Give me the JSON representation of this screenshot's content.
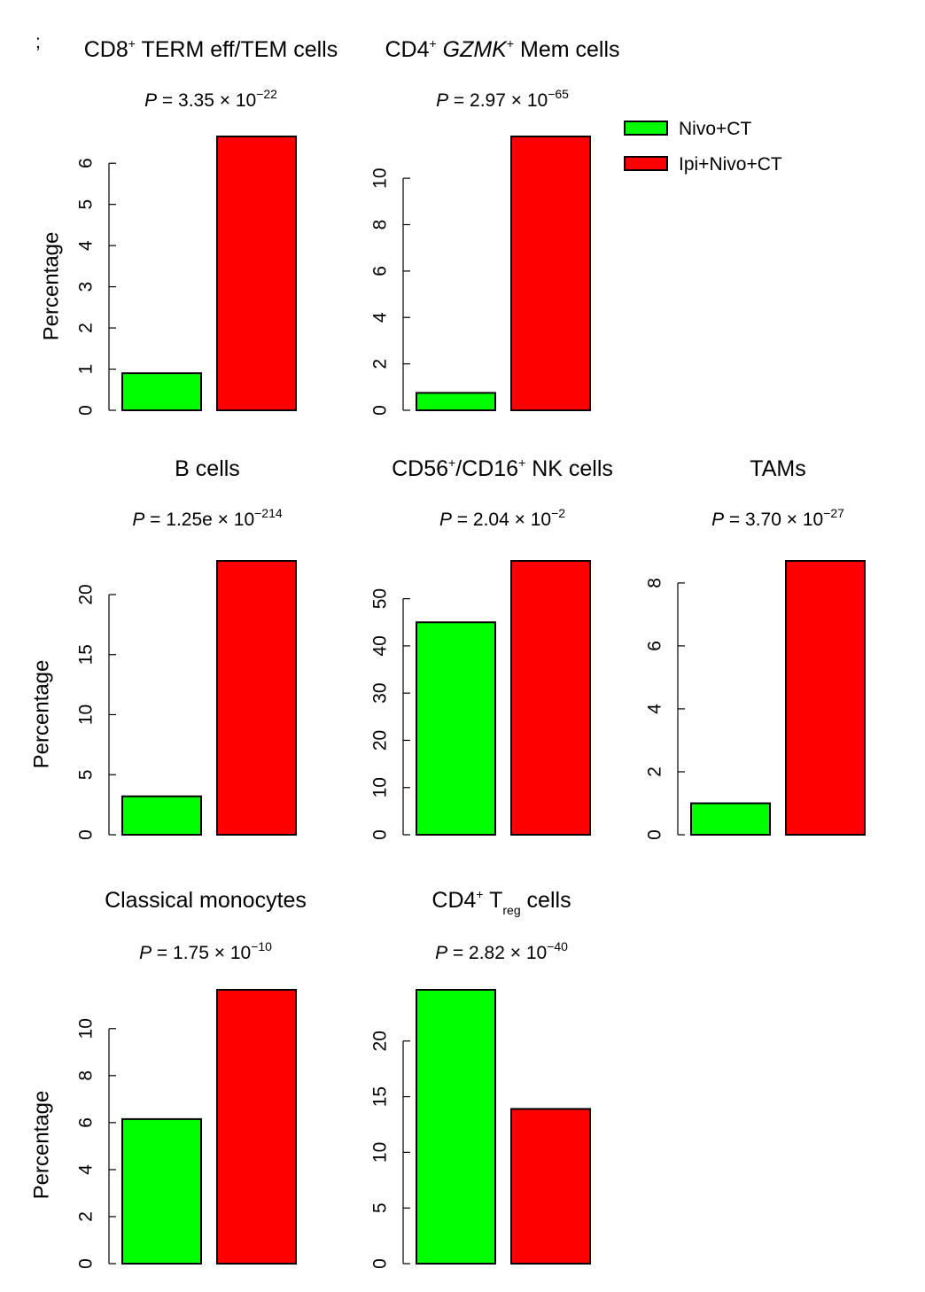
{
  "stray_mark": ";",
  "y_label": "Percentage",
  "colors": {
    "nivo_ct": "#00ff00",
    "ipi_nivo_ct": "#ff0000",
    "outline": "#000000"
  },
  "legend": {
    "placement": "top-right",
    "entries": [
      {
        "label": "Nivo+CT",
        "color": "#00ff00"
      },
      {
        "label": "Ipi+Nivo+CT",
        "color": "#ff0000"
      }
    ]
  },
  "chart_data": [
    {
      "type": "bar",
      "title": {
        "pre": "CD8",
        "sup": "+",
        "post": " TERM eff/TEM cells",
        "ital": "",
        "post2": "",
        "sub": "",
        "post3": ""
      },
      "p_value": {
        "label": "P",
        "eq": " =  ",
        "mantissa": "3.35 × 10",
        "exp": "−22"
      },
      "categories": [
        "Nivo+CT",
        "Ipi+Nivo+CT"
      ],
      "values": [
        0.9,
        6.65
      ],
      "ylim": [
        0,
        6.65
      ],
      "ticks": [
        0,
        1,
        2,
        3,
        4,
        5,
        6
      ],
      "ylabel": "Percentage"
    },
    {
      "type": "bar",
      "title": {
        "pre": "CD4",
        "sup": "+",
        "post": " ",
        "ital": "GZMK",
        "sup2": "+",
        "post2": " Mem cells",
        "sub": "",
        "post3": ""
      },
      "p_value": {
        "label": "P",
        "eq": " = ",
        "mantissa": "2.97 × 10",
        "exp": "−65"
      },
      "categories": [
        "Nivo+CT",
        "Ipi+Nivo+CT"
      ],
      "values": [
        0.75,
        11.8
      ],
      "ylim": [
        0,
        11.8
      ],
      "ticks": [
        0,
        2,
        4,
        6,
        8,
        10
      ],
      "ylabel": ""
    },
    {
      "type": "bar",
      "title": {
        "pre": "B cells",
        "sup": "",
        "post": "",
        "ital": "",
        "post2": "",
        "sub": "",
        "post3": ""
      },
      "p_value": {
        "label": "P",
        "eq": " = ",
        "mantissa": "1.25e × 10",
        "exp": "−214"
      },
      "categories": [
        "Nivo+CT",
        "Ipi+Nivo+CT"
      ],
      "values": [
        3.2,
        22.8
      ],
      "ylim": [
        0,
        22.8
      ],
      "ticks": [
        0,
        5,
        10,
        15,
        20
      ],
      "ylabel": "Percentage"
    },
    {
      "type": "bar",
      "title": {
        "pre": "CD56",
        "sup": "+",
        "post": "/CD16",
        "ital": "",
        "sup2": "+",
        "post2": " NK cells",
        "sub": "",
        "post3": ""
      },
      "p_value": {
        "label": "P",
        "eq": " = ",
        "mantissa": "2.04 × 10",
        "exp": "−2"
      },
      "categories": [
        "Nivo+CT",
        "Ipi+Nivo+CT"
      ],
      "values": [
        45,
        58
      ],
      "ylim": [
        0,
        58
      ],
      "ticks": [
        0,
        10,
        20,
        30,
        40,
        50
      ],
      "ylabel": ""
    },
    {
      "type": "bar",
      "title": {
        "pre": "TAMs",
        "sup": "",
        "post": "",
        "ital": "",
        "post2": "",
        "sub": "",
        "post3": ""
      },
      "p_value": {
        "label": "P",
        "eq": " = ",
        "mantissa": "3.70 × 10",
        "exp": "−27"
      },
      "categories": [
        "Nivo+CT",
        "Ipi+Nivo+CT"
      ],
      "values": [
        1.0,
        8.7
      ],
      "ylim": [
        0,
        8.7
      ],
      "ticks": [
        0,
        2,
        4,
        6,
        8
      ],
      "ylabel": ""
    },
    {
      "type": "bar",
      "title": {
        "pre": "Classical monocytes",
        "sup": "",
        "post": "",
        "ital": "",
        "post2": "",
        "sub": "",
        "post3": ""
      },
      "p_value": {
        "label": "P",
        "eq": " = ",
        "mantissa": "1.75 × 10",
        "exp": "−10"
      },
      "categories": [
        "Nivo+CT",
        "Ipi+Nivo+CT"
      ],
      "values": [
        6.15,
        11.65
      ],
      "ylim": [
        0,
        11.65
      ],
      "ticks": [
        0,
        2,
        4,
        6,
        8,
        10
      ],
      "ylabel": "Percentage"
    },
    {
      "type": "bar",
      "title": {
        "pre": "CD4",
        "sup": "+",
        "post": " T",
        "ital": "",
        "post2": "",
        "sub": "reg",
        "post3": " cells"
      },
      "p_value": {
        "label": "P",
        "eq": " = ",
        "mantissa": "2.82 × 10",
        "exp": "−40"
      },
      "categories": [
        "Nivo+CT",
        "Ipi+Nivo+CT"
      ],
      "values": [
        24.6,
        13.9
      ],
      "ylim": [
        0,
        24.6
      ],
      "ticks": [
        0,
        5,
        10,
        15,
        20
      ],
      "ylabel": ""
    }
  ]
}
